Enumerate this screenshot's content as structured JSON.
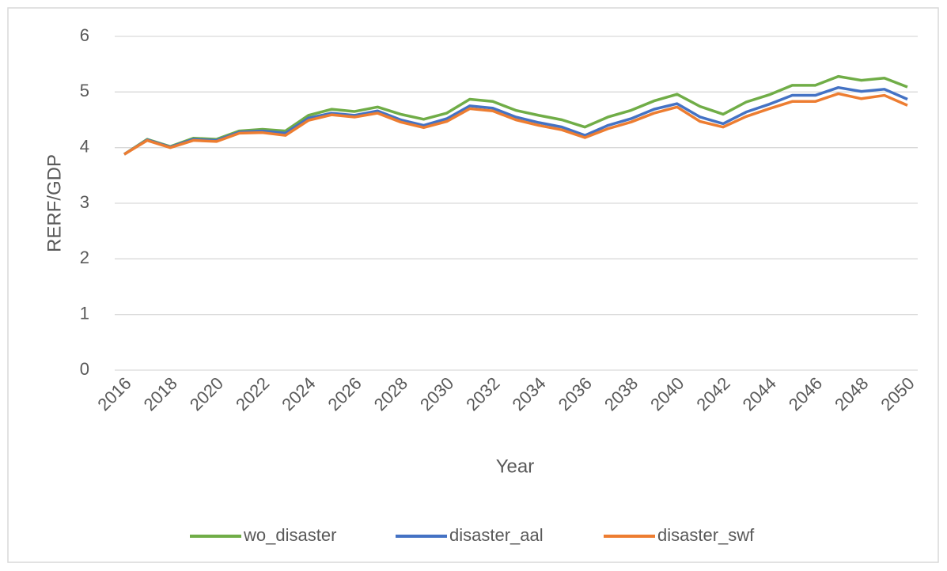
{
  "chart_data": {
    "type": "line",
    "x_label": "Year",
    "y_label": "RERF/GDP",
    "x": [
      2016,
      2017,
      2018,
      2019,
      2020,
      2021,
      2022,
      2023,
      2024,
      2025,
      2026,
      2027,
      2028,
      2029,
      2030,
      2031,
      2032,
      2033,
      2034,
      2035,
      2036,
      2037,
      2038,
      2039,
      2040,
      2041,
      2042,
      2043,
      2044,
      2045,
      2046,
      2047,
      2048,
      2049,
      2050
    ],
    "xlim": [
      2016,
      2050
    ],
    "xticks": [
      2016,
      2018,
      2020,
      2022,
      2024,
      2026,
      2028,
      2030,
      2032,
      2034,
      2036,
      2038,
      2040,
      2042,
      2044,
      2046,
      2048,
      2050
    ],
    "ylim": [
      0,
      6
    ],
    "yticks": [
      0,
      1,
      2,
      3,
      4,
      5,
      6
    ],
    "grid": true,
    "legend": "bottom",
    "series": [
      {
        "name": "wo_disaster",
        "color": "#70ad47",
        "values": [
          3.88,
          4.15,
          4.02,
          4.17,
          4.15,
          4.3,
          4.33,
          4.3,
          4.58,
          4.69,
          4.65,
          4.73,
          4.6,
          4.51,
          4.62,
          4.87,
          4.83,
          4.67,
          4.58,
          4.5,
          4.37,
          4.55,
          4.67,
          4.84,
          4.96,
          4.74,
          4.6,
          4.82,
          4.95,
          5.12,
          5.12,
          5.28,
          5.21,
          5.25,
          5.09
        ]
      },
      {
        "name": "disaster_aal",
        "color": "#4472c4",
        "values": [
          3.88,
          4.14,
          4.01,
          4.15,
          4.13,
          4.28,
          4.3,
          4.26,
          4.53,
          4.62,
          4.58,
          4.66,
          4.5,
          4.4,
          4.52,
          4.75,
          4.71,
          4.55,
          4.45,
          4.37,
          4.22,
          4.4,
          4.52,
          4.69,
          4.79,
          4.55,
          4.43,
          4.64,
          4.78,
          4.94,
          4.94,
          5.08,
          5.01,
          5.05,
          4.87
        ]
      },
      {
        "name": "disaster_swf",
        "color": "#ed7d31",
        "values": [
          3.88,
          4.13,
          4.0,
          4.13,
          4.11,
          4.26,
          4.27,
          4.22,
          4.49,
          4.59,
          4.55,
          4.62,
          4.46,
          4.36,
          4.47,
          4.7,
          4.66,
          4.5,
          4.4,
          4.32,
          4.18,
          4.34,
          4.46,
          4.62,
          4.73,
          4.47,
          4.37,
          4.56,
          4.7,
          4.83,
          4.83,
          4.97,
          4.88,
          4.94,
          4.76
        ]
      }
    ]
  }
}
